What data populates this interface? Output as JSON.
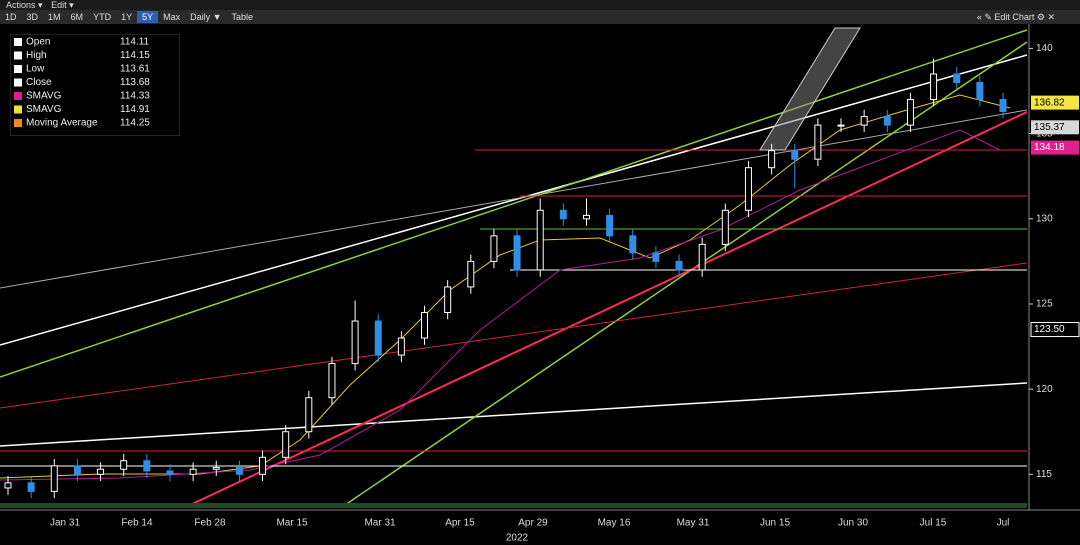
{
  "toolbar": {
    "menus": [
      "Actions ▾",
      "Edit ▾"
    ],
    "ranges": [
      "1D",
      "3D",
      "1M",
      "6M",
      "YTD",
      "1Y",
      "5Y",
      "Max"
    ],
    "active_range": "5Y",
    "period": "Daily ▼",
    "table": "Table",
    "edit_chart": "« ✎ Edit Chart ⚙ ✕"
  },
  "legend": [
    {
      "name": "Open",
      "value": 114.11,
      "color": "#ffffff"
    },
    {
      "name": "High",
      "value": 114.15,
      "color": "#ffffff"
    },
    {
      "name": "Low",
      "value": 113.61,
      "color": "#ffffff"
    },
    {
      "name": "Close",
      "value": 113.68,
      "color": "#ffffff"
    },
    {
      "name": "SMAVG",
      "value": 114.33,
      "color": "#e0208f"
    },
    {
      "name": "SMAVG",
      "value": 114.91,
      "color": "#e8e830"
    },
    {
      "name": "Moving Average",
      "value": 114.25,
      "color": "#f08a1c"
    }
  ],
  "chart_data": {
    "type": "candlestick",
    "open": [
      114.2,
      114.5,
      114.0,
      115.5,
      115.0,
      115.3,
      115.8,
      115.2,
      115.0,
      115.3,
      115.4,
      115.0,
      116.0,
      117.5,
      119.5,
      121.5,
      124.0,
      122.0,
      123.0,
      124.5,
      126.0,
      127.5,
      129.0,
      127.0,
      130.5,
      130.0,
      130.2,
      129.0,
      128.0,
      127.5,
      127.0,
      128.5,
      130.5,
      133.0,
      134.0,
      133.5,
      135.5,
      135.5,
      136.0,
      135.5,
      137.0,
      138.5,
      138.0,
      137.0
    ],
    "high": [
      114.9,
      114.9,
      115.9,
      115.9,
      115.7,
      116.2,
      116.2,
      115.6,
      115.7,
      115.8,
      115.8,
      116.4,
      117.9,
      119.9,
      121.9,
      125.2,
      124.4,
      123.4,
      124.9,
      126.4,
      127.9,
      129.4,
      129.4,
      131.2,
      130.9,
      131.2,
      130.6,
      129.4,
      128.4,
      127.9,
      128.9,
      130.9,
      133.4,
      134.4,
      134.4,
      135.9,
      135.9,
      136.4,
      136.4,
      137.4,
      139.4,
      138.9,
      138.4,
      137.4
    ],
    "low": [
      113.8,
      113.6,
      113.6,
      114.6,
      114.6,
      114.9,
      114.8,
      114.6,
      114.6,
      114.9,
      114.6,
      114.6,
      115.6,
      117.1,
      119.1,
      121.1,
      121.6,
      121.6,
      122.6,
      124.1,
      125.6,
      127.1,
      126.6,
      126.6,
      129.6,
      129.6,
      128.6,
      127.6,
      127.1,
      126.6,
      126.6,
      128.1,
      130.1,
      132.6,
      131.8,
      133.1,
      135.1,
      135.1,
      135.1,
      135.1,
      136.6,
      137.6,
      136.6,
      135.9
    ],
    "close": [
      114.5,
      114.0,
      115.5,
      115.0,
      115.3,
      115.8,
      115.2,
      115.0,
      115.3,
      115.4,
      115.0,
      116.0,
      117.5,
      119.5,
      121.5,
      124.0,
      122.0,
      123.0,
      124.5,
      126.0,
      127.5,
      129.0,
      127.0,
      130.5,
      130.0,
      130.2,
      129.0,
      128.0,
      127.5,
      127.0,
      128.5,
      130.5,
      133.0,
      134.0,
      133.5,
      135.5,
      135.5,
      136.0,
      135.5,
      137.0,
      138.5,
      138.0,
      137.0,
      136.3
    ],
    "up_color": "#ffffff",
    "down_color": "#2f8fe8",
    "ylim": [
      113.2,
      141.2
    ],
    "yticks": [
      115,
      120,
      125,
      130,
      135,
      140
    ],
    "price_tags": [
      {
        "value": 136.82,
        "color": "#f2e640"
      },
      {
        "value": 135.37,
        "color": "#d8d8d8"
      },
      {
        "value": 134.18,
        "color": "#e0208f"
      },
      {
        "value": 123.5,
        "label": "123.50",
        "color": "#000000"
      }
    ],
    "x_labels": [
      "Jan 31",
      "Feb 14",
      "Feb 28",
      "Mar 15",
      "Mar 31",
      "Apr 15",
      "Apr 29",
      "May 16",
      "May 31",
      "Jun 15",
      "Jun 30",
      "Jul 15",
      "Jul"
    ],
    "x_year": "2022"
  }
}
